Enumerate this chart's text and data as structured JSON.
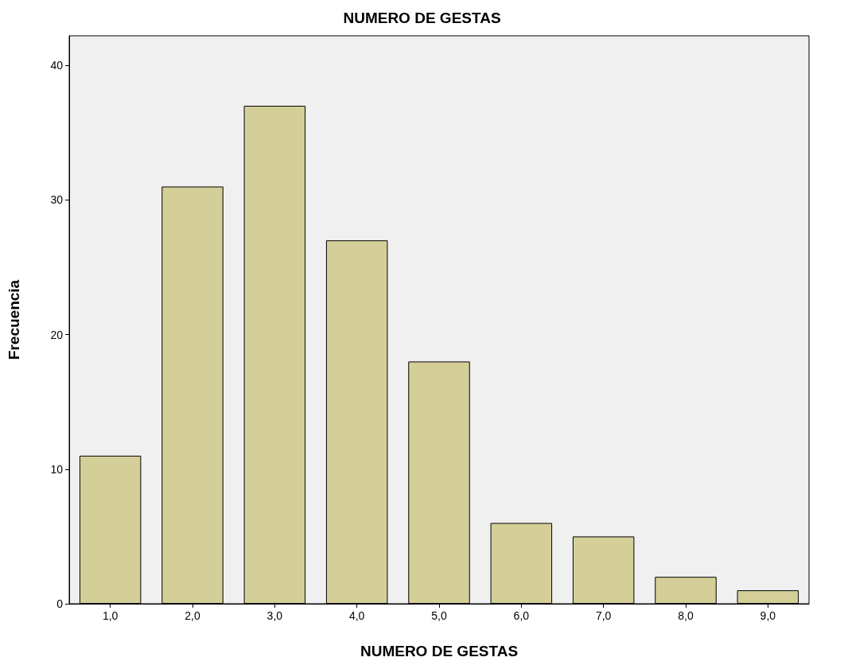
{
  "chart_data": {
    "type": "bar",
    "title": "NUMERO DE GESTAS",
    "xlabel": "NUMERO DE GESTAS",
    "ylabel": "Frecuencia",
    "categories": [
      "1,0",
      "2,0",
      "3,0",
      "4,0",
      "5,0",
      "6,0",
      "7,0",
      "8,0",
      "9,0"
    ],
    "values": [
      11,
      31,
      37,
      27,
      18,
      6,
      5,
      2,
      1
    ],
    "color": "#d4cf98",
    "ylim": [
      0,
      42.2
    ],
    "yticks": [
      0,
      10,
      20,
      30,
      40
    ],
    "grid": false
  }
}
